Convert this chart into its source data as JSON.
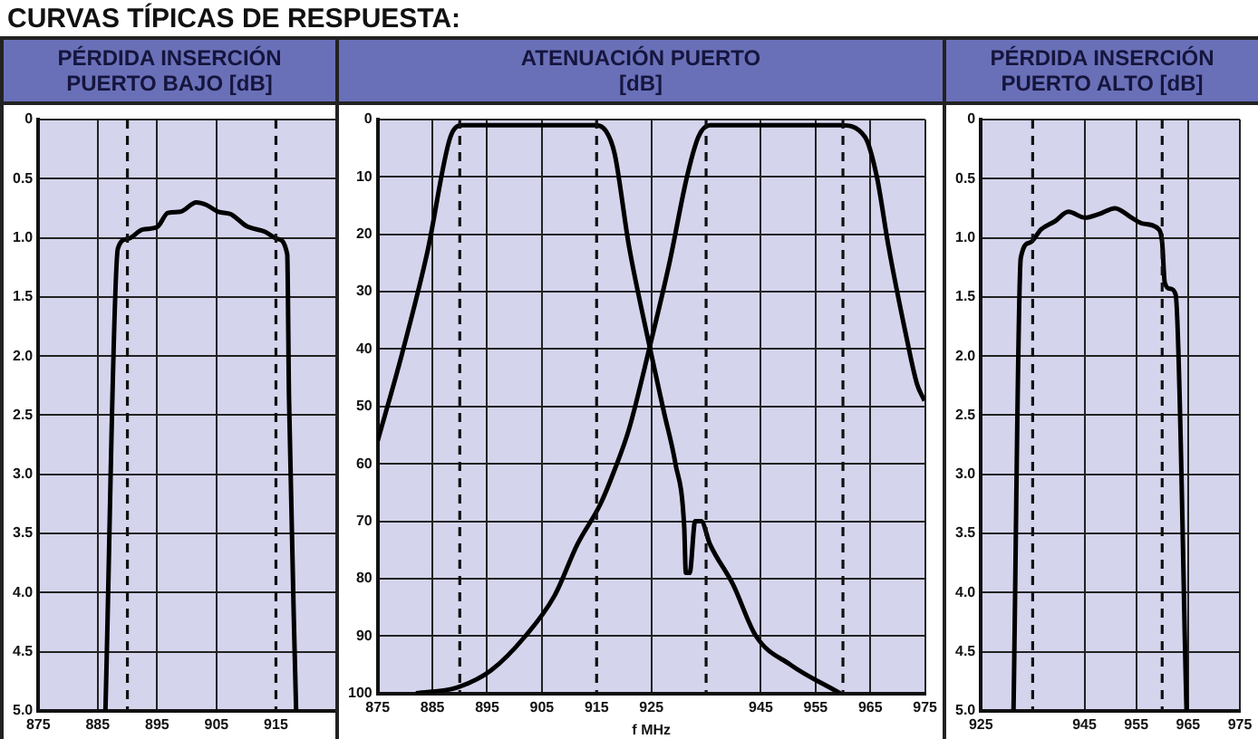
{
  "chart_data": [
    {
      "type": "line",
      "title": "CURVAS TÍPICAS DE RESPUESTA:",
      "ylabel": "PÉRDIDA INSERCIÓN PUERTO BAJO [dB]",
      "xlim": [
        875,
        925
      ],
      "xticks": [
        875,
        885,
        895,
        905,
        915
      ],
      "ylim": [
        5,
        0
      ],
      "yticks": [
        0,
        0.5,
        {
          "value": 1,
          "label": "1.0"
        },
        1.5,
        {
          "value": 2,
          "label": "2.0"
        },
        2.5,
        {
          "value": 3,
          "label": "3.0"
        },
        3.5,
        {
          "value": 4,
          "label": "4.0"
        },
        4.5,
        {
          "value": 5,
          "label": "5.0"
        }
      ],
      "grid": true,
      "legend": false,
      "marker": "none",
      "ref_lines": [
        {
          "axis": "x",
          "value": 890,
          "line_style": "dashed"
        },
        {
          "axis": "x",
          "value": 915,
          "line_style": "dashed"
        }
      ],
      "series": [
        {
          "color": "#000000",
          "x": [
            886.3,
            888.4,
            890,
            892.6,
            895,
            896.8,
            898.9,
            901.6,
            903.2,
            905.3,
            907.4,
            910,
            913.2,
            915.3,
            916.9,
            917.2,
            918.4
          ],
          "values": [
            5,
            1.09,
            1.01,
            0.93,
            0.91,
            0.79,
            0.78,
            0.7,
            0.72,
            0.78,
            0.8,
            0.9,
            0.95,
            1.01,
            1.14,
            2.35,
            5
          ]
        }
      ]
    },
    {
      "type": "line",
      "ylabel": "ATENUACIÓN PUERTO [dB]",
      "xlabel": "f MHz",
      "xlim": [
        875,
        975
      ],
      "xticks": [
        875,
        885,
        895,
        905,
        915,
        925,
        945,
        955,
        965,
        975
      ],
      "ylim": [
        100,
        0
      ],
      "yticks": [
        0,
        10,
        20,
        30,
        40,
        50,
        60,
        70,
        80,
        90,
        100
      ],
      "grid": true,
      "legend": false,
      "marker": "none",
      "ref_lines": [
        {
          "axis": "x",
          "value": 890,
          "line_style": "dashed"
        },
        {
          "axis": "x",
          "value": 915,
          "line_style": "dashed"
        },
        {
          "axis": "x",
          "value": 935,
          "line_style": "dashed"
        },
        {
          "axis": "x",
          "value": 960,
          "line_style": "dashed"
        }
      ],
      "series": [
        {
          "color": "#000000",
          "x": [
            875,
            879.4,
            884.1,
            888.3,
            890.5,
            895,
            905,
            914.6,
            916.7,
            918.3,
            920.9,
            924.1,
            927.3,
            929.4,
            931,
            931.3,
            932,
            933,
            934.1,
            935.7,
            939.9,
            944.1,
            950.4,
            959.5
          ],
          "values": [
            56,
            41,
            23,
            3,
            1,
            1,
            1,
            1,
            2,
            6,
            22,
            37,
            51,
            60,
            71,
            79,
            79,
            70,
            70,
            74,
            81,
            90,
            95,
            100
          ]
        },
        {
          "color": "#000000",
          "x": [
            882,
            889.4,
            895.7,
            902,
            907.3,
            911.5,
            915.7,
            918.3,
            920.9,
            924.6,
            928.3,
            931.5,
            933.6,
            935.7,
            945,
            959.5,
            964,
            966.2,
            968.3,
            971.4,
            973.5,
            974.9
          ],
          "values": [
            100,
            99,
            96,
            90,
            83,
            74,
            67,
            61,
            54,
            40,
            25,
            10,
            3,
            1,
            1,
            1,
            3,
            10,
            22,
            37,
            46,
            49
          ]
        }
      ]
    },
    {
      "type": "line",
      "ylabel": "PÉRDIDA INSERCIÓN PUERTO ALTO [dB]",
      "xlim": [
        925,
        975
      ],
      "xticks": [
        925,
        945,
        955,
        965,
        975
      ],
      "ylim": [
        5,
        0
      ],
      "yticks": [
        0,
        0.5,
        {
          "value": 1,
          "label": "1.0"
        },
        1.5,
        {
          "value": 2,
          "label": "2.0"
        },
        2.5,
        {
          "value": 3,
          "label": "3.0"
        },
        3.5,
        {
          "value": 4,
          "label": "4.0"
        },
        4.5,
        {
          "value": 5,
          "label": "5.0"
        }
      ],
      "grid": true,
      "legend": false,
      "marker": "none",
      "ref_lines": [
        {
          "axis": "x",
          "value": 935,
          "line_style": "dashed"
        },
        {
          "axis": "x",
          "value": 960,
          "line_style": "dashed"
        }
      ],
      "series": [
        {
          "color": "#000000",
          "x": [
            931.3,
            932.7,
            934.5,
            936.6,
            939.3,
            941.9,
            945.1,
            947.8,
            950.9,
            954.1,
            956.2,
            959.4,
            960,
            960.5,
            961.5,
            962.6,
            964.7
          ],
          "values": [
            5,
            1.17,
            1.04,
            0.93,
            0.86,
            0.78,
            0.83,
            0.8,
            0.75,
            0.83,
            0.88,
            0.93,
            1.04,
            1.38,
            1.43,
            1.48,
            5
          ]
        }
      ]
    }
  ]
}
